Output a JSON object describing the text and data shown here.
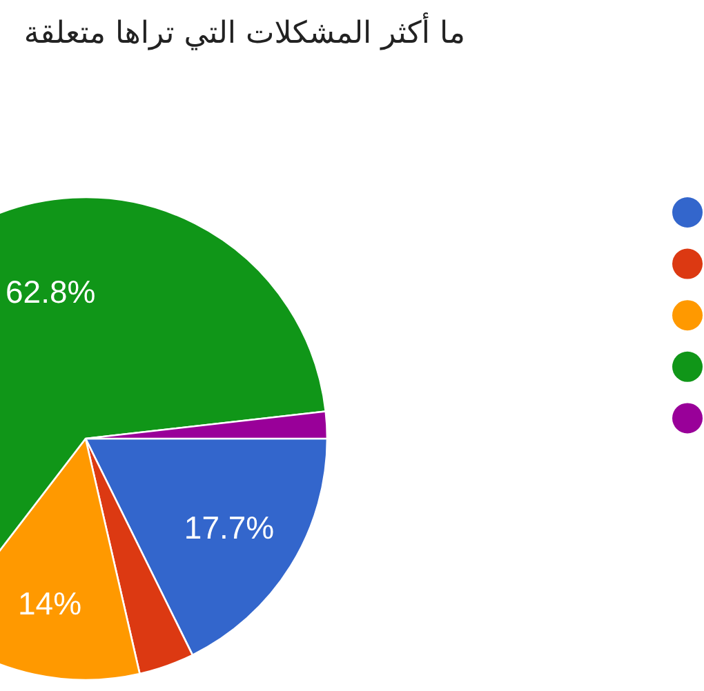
{
  "chart_data": {
    "type": "pie",
    "title": "ما أكثر المشكلات التي تراها متعلقة",
    "categories": [
      null,
      null,
      null,
      null,
      null
    ],
    "values": [
      17.7,
      3.7,
      14,
      62.8,
      1.8
    ],
    "colors": [
      "#3366cc",
      "#dc3912",
      "#ff9900",
      "#109618",
      "#990099"
    ],
    "value_labels": [
      "17.7%",
      null,
      "14%",
      "62.8%",
      null
    ]
  }
}
